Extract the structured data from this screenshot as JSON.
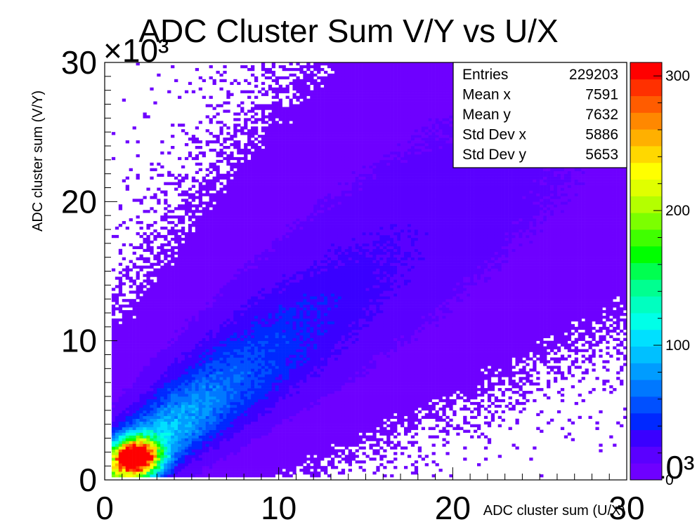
{
  "chart_data": {
    "type": "heatmap",
    "title": "ADC Cluster Sum V/Y vs U/X",
    "xlabel": "ADC cluster sum (U/X)",
    "ylabel": "ADC cluster sum (V/Y)",
    "x_multiplier": "×10³",
    "y_multiplier": "×10³",
    "z_multiplier": "×10³",
    "xlim": [
      0,
      30
    ],
    "ylim": [
      0,
      30
    ],
    "x_ticks": [
      "0",
      "10",
      "20",
      "30"
    ],
    "y_ticks": [
      "0",
      "10",
      "20",
      "30"
    ],
    "z_ticks": [
      "0",
      "100",
      "200",
      "300"
    ],
    "zlim": [
      0,
      310
    ],
    "colormap": [
      "#6e00ff",
      "#5a00ff",
      "#3a00ff",
      "#0028ff",
      "#0050ff",
      "#0078ff",
      "#009cff",
      "#00c0ff",
      "#00e0ff",
      "#00ffe8",
      "#00ffc0",
      "#00ff90",
      "#00ff50",
      "#00ff00",
      "#40ff00",
      "#7cff00",
      "#b4ff00",
      "#e0ff00",
      "#ffff00",
      "#ffd800",
      "#ffb000",
      "#ff8800",
      "#ff5c00",
      "#ff3000",
      "#ff0000"
    ],
    "density_model": {
      "band": "y ≈ x, dense core near (1.5, 1.5) x10³, broadening toward 30 x10³",
      "peak_counts": 310,
      "peak_location": [
        1.8,
        1.6
      ]
    },
    "stats": {
      "title": "",
      "rows": [
        {
          "label": "Entries",
          "value": "229203"
        },
        {
          "label": "Mean x",
          "value": "7591"
        },
        {
          "label": "Mean y",
          "value": "7632"
        },
        {
          "label": "Std Dev x",
          "value": "5886"
        },
        {
          "label": "Std Dev y",
          "value": "5653"
        }
      ]
    }
  }
}
